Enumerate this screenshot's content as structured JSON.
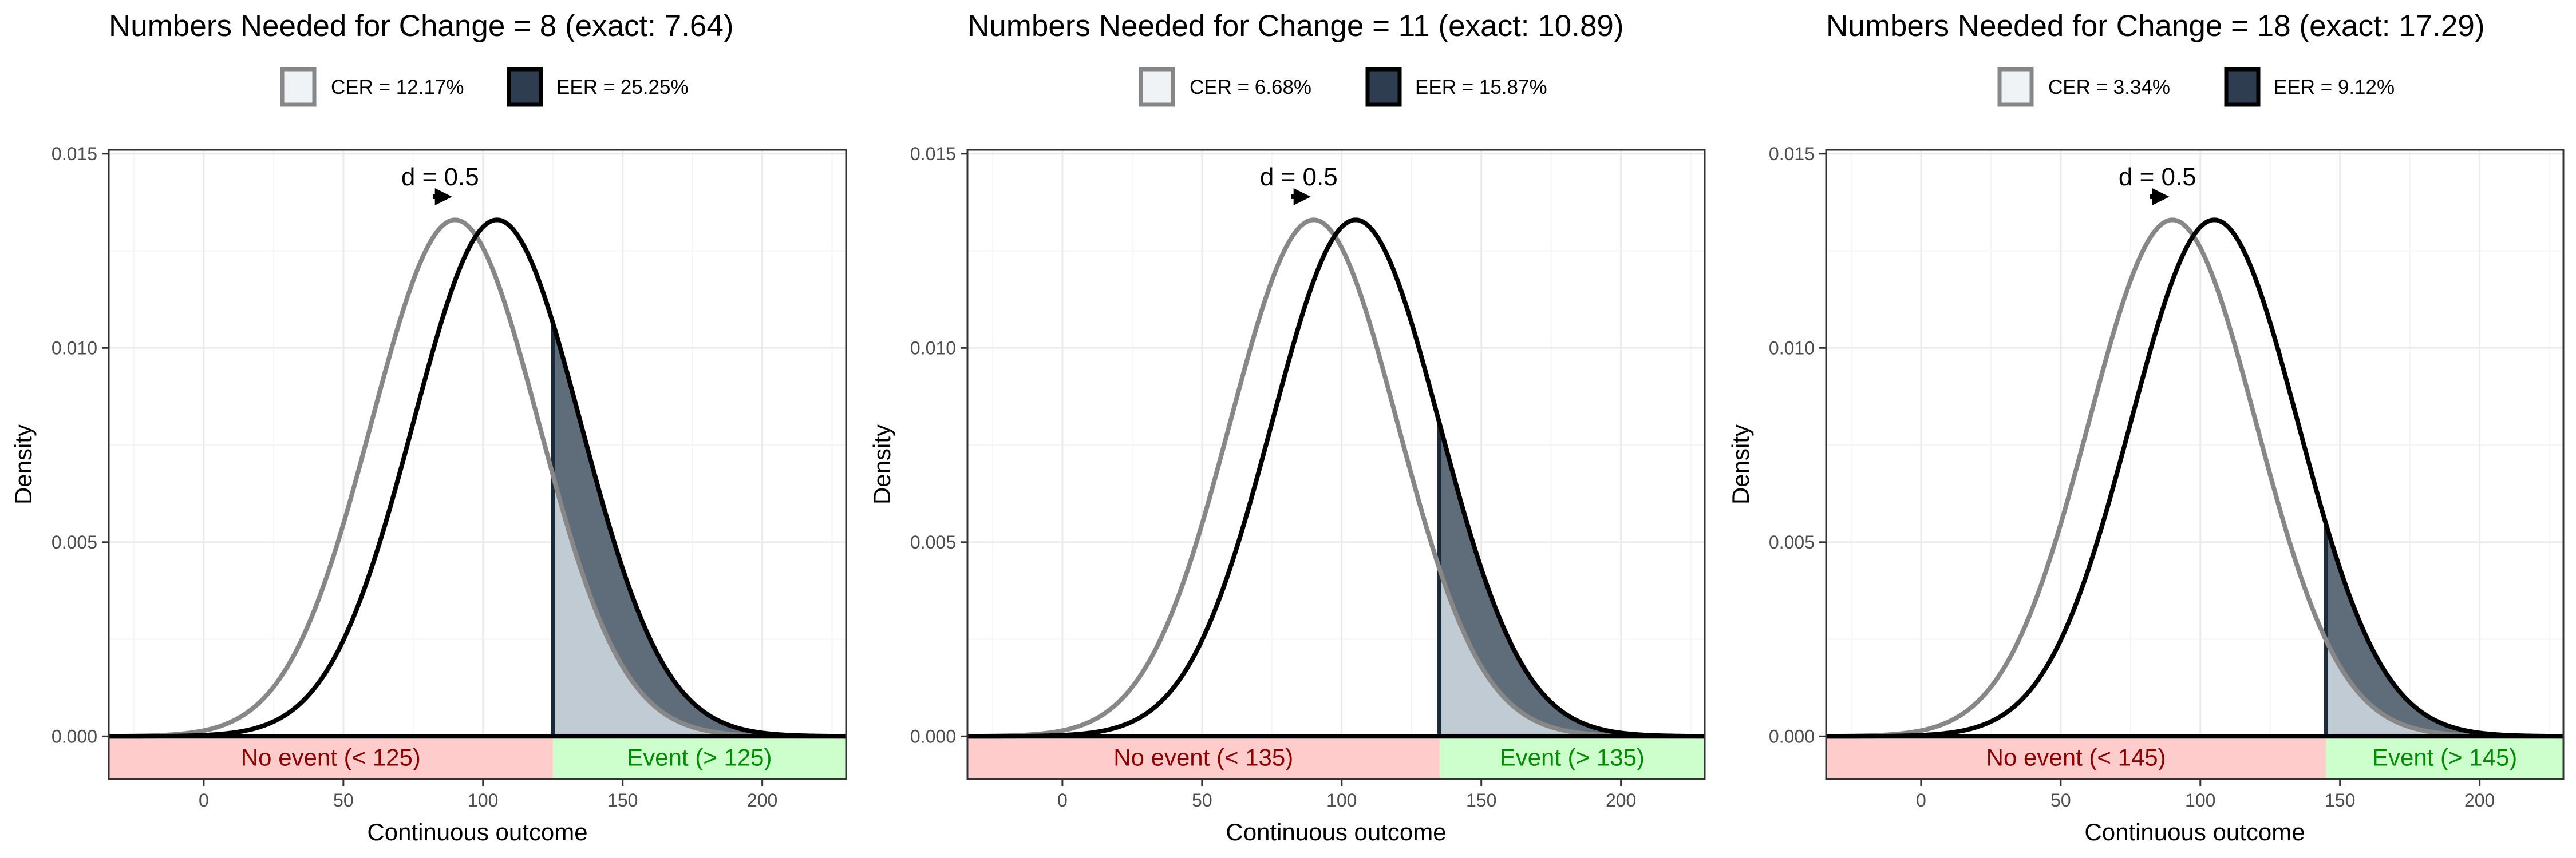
{
  "chart_data": [
    {
      "type": "line",
      "title": "Numbers Needed for Change = 8 (exact: 7.64)",
      "xlabel": "Continuous outcome",
      "ylabel": "Density",
      "xlim": [
        -34,
        230
      ],
      "ylim": [
        -0.0011,
        0.0151
      ],
      "xticks": [
        0,
        50,
        100,
        150,
        200
      ],
      "xtick_labels": [
        "0",
        "50",
        "100",
        "150",
        "200"
      ],
      "yticks": [
        0,
        0.005,
        0.01,
        0.015
      ],
      "ytick_labels": [
        "0.000",
        "0.005",
        "0.010",
        "0.015"
      ],
      "grid": true,
      "legend_position": "top",
      "series": [
        {
          "name": "CER = 12.17%",
          "distribution": "normal",
          "mean": 90,
          "sd": 30,
          "color": "#878787",
          "fill": "#c1cbd3"
        },
        {
          "name": "EER = 25.25%",
          "distribution": "normal",
          "mean": 105,
          "sd": 30,
          "color": "#000000",
          "fill": "#5f6d7b"
        }
      ],
      "threshold": 125,
      "effect_label": "d = 0.5",
      "no_event_label": "No event (< 125)",
      "event_label": "Event (> 125)"
    },
    {
      "type": "line",
      "title": "Numbers Needed for Change = 11 (exact: 10.89)",
      "xlabel": "Continuous outcome",
      "ylabel": "Density",
      "xlim": [
        -34,
        230
      ],
      "ylim": [
        -0.0011,
        0.0151
      ],
      "xticks": [
        0,
        50,
        100,
        150,
        200
      ],
      "xtick_labels": [
        "0",
        "50",
        "100",
        "150",
        "200"
      ],
      "yticks": [
        0,
        0.005,
        0.01,
        0.015
      ],
      "ytick_labels": [
        "0.000",
        "0.005",
        "0.010",
        "0.015"
      ],
      "grid": true,
      "legend_position": "top",
      "series": [
        {
          "name": "CER = 6.68%",
          "distribution": "normal",
          "mean": 90,
          "sd": 30,
          "color": "#878787",
          "fill": "#c1cbd3"
        },
        {
          "name": "EER = 15.87%",
          "distribution": "normal",
          "mean": 105,
          "sd": 30,
          "color": "#000000",
          "fill": "#5f6d7b"
        }
      ],
      "threshold": 135,
      "effect_label": "d = 0.5",
      "no_event_label": "No event (< 135)",
      "event_label": "Event (> 135)"
    },
    {
      "type": "line",
      "title": "Numbers Needed for Change = 18 (exact: 17.29)",
      "xlabel": "Continuous outcome",
      "ylabel": "Density",
      "xlim": [
        -34,
        230
      ],
      "ylim": [
        -0.0011,
        0.0151
      ],
      "xticks": [
        0,
        50,
        100,
        150,
        200
      ],
      "xtick_labels": [
        "0",
        "50",
        "100",
        "150",
        "200"
      ],
      "yticks": [
        0,
        0.005,
        0.01,
        0.015
      ],
      "ytick_labels": [
        "0.000",
        "0.005",
        "0.010",
        "0.015"
      ],
      "grid": true,
      "legend_position": "top",
      "series": [
        {
          "name": "CER = 3.34%",
          "distribution": "normal",
          "mean": 90,
          "sd": 30,
          "color": "#878787",
          "fill": "#c1cbd3"
        },
        {
          "name": "EER = 9.12%",
          "distribution": "normal",
          "mean": 105,
          "sd": 30,
          "color": "#000000",
          "fill": "#5f6d7b"
        }
      ],
      "threshold": 145,
      "effect_label": "d = 0.5",
      "no_event_label": "No event (< 145)",
      "event_label": "Event (> 145)"
    }
  ],
  "colors": {
    "no_event_band": "#ffcccc",
    "no_event_text": "#8b0000",
    "event_band": "#ccffcc",
    "event_text": "#008b00",
    "grid_major": "#ebebeb",
    "grid_minor": "#f5f5f5",
    "threshold_line": "#1c2b3a",
    "legend_cer_fill": "#f0f3f6",
    "legend_eer_fill": "#2e3e50"
  }
}
